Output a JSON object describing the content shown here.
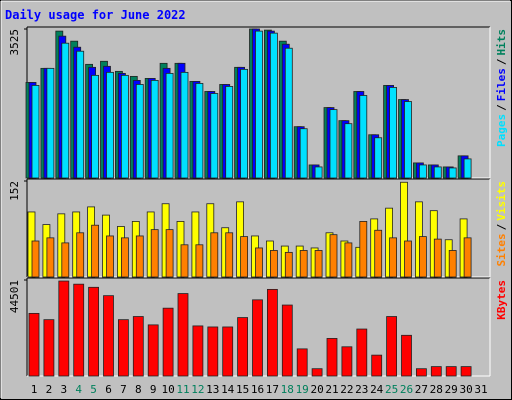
{
  "chart_data": {
    "type": "bar",
    "title": "Daily usage for June 2022",
    "categories": [
      "1",
      "2",
      "3",
      "4",
      "5",
      "6",
      "7",
      "8",
      "9",
      "10",
      "11",
      "12",
      "13",
      "14",
      "15",
      "16",
      "17",
      "18",
      "19",
      "20",
      "21",
      "22",
      "23",
      "24",
      "25",
      "26",
      "27",
      "28",
      "29",
      "30",
      "31"
    ],
    "weekend_indices": [
      3,
      4,
      10,
      11,
      17,
      18,
      24,
      25
    ],
    "weekend_color": "#00805c",
    "label_separator": "/",
    "panels": [
      {
        "ylim": [
          0,
          3525
        ],
        "yticks": [
          3525
        ],
        "series": [
          {
            "name": "Hits",
            "color": "#00805c",
            "values": [
              2261,
              2594,
              3475,
              3237,
              2689,
              2761,
              2523,
              2404,
              2356,
              2713,
              2713,
              2285,
              2047,
              2213,
              2618,
              3525,
              3499,
              3237,
              1214,
              309,
              1666,
              1357,
              2047,
              1023,
              2190,
              1856,
              357,
              309,
              262,
              524,
              null
            ]
          },
          {
            "name": "Files",
            "color": "#0000ff",
            "values": [
              2261,
              2594,
              3356,
              3094,
              2618,
              2642,
              2475,
              2309,
              2356,
              2594,
              2713,
              2285,
              2047,
              2213,
              2618,
              3525,
              3475,
              3165,
              1214,
              309,
              1666,
              1357,
              2047,
              1023,
              2190,
              1856,
              357,
              309,
              262,
              524,
              null
            ]
          },
          {
            "name": "Pages",
            "color": "#00e0ff",
            "values": [
              2190,
              2594,
              3189,
              2999,
              2428,
              2499,
              2428,
              2213,
              2309,
              2475,
              2499,
              2237,
              1999,
              2166,
              2570,
              3475,
              3427,
              3070,
              1166,
              262,
              1618,
              1285,
              1952,
              952,
              2142,
              1809,
              309,
              262,
              238,
              452,
              null
            ]
          }
        ]
      },
      {
        "ylim": [
          0,
          152
        ],
        "yticks": [
          152
        ],
        "series": [
          {
            "name": "Visits",
            "color": "#ffff00",
            "values": [
              103,
              83,
              100,
              103,
              111,
              98,
              80,
              88,
              103,
              116,
              88,
              103,
              116,
              78,
              119,
              65,
              57,
              49,
              49,
              46,
              70,
              57,
              47,
              92,
              109,
              150,
              119,
              105,
              59,
              92,
              null
            ]
          },
          {
            "name": "Sites",
            "color": "#ff8000",
            "values": [
              57,
              62,
              54,
              70,
              82,
              65,
              62,
              65,
              75,
              75,
              51,
              51,
              70,
              70,
              64,
              46,
              42,
              39,
              42,
              42,
              67,
              54,
              88,
              74,
              62,
              57,
              64,
              60,
              42,
              62,
              null
            ]
          }
        ]
      },
      {
        "ylim": [
          0,
          44501
        ],
        "yticks": [
          44501
        ],
        "series": [
          {
            "name": "KBytes",
            "color": "#ff0000",
            "values": [
              29022,
              26120,
              44017,
              42566,
              41115,
              37245,
              26120,
              27571,
              23701,
              31441,
              38212,
              23218,
              22734,
              22734,
              27087,
              35310,
              40148,
              32892,
              12576,
              3386,
              17413,
              13544,
              21767,
              9674,
              27571,
              18864,
              3386,
              4353,
              4353,
              4353,
              null
            ]
          }
        ]
      }
    ]
  }
}
